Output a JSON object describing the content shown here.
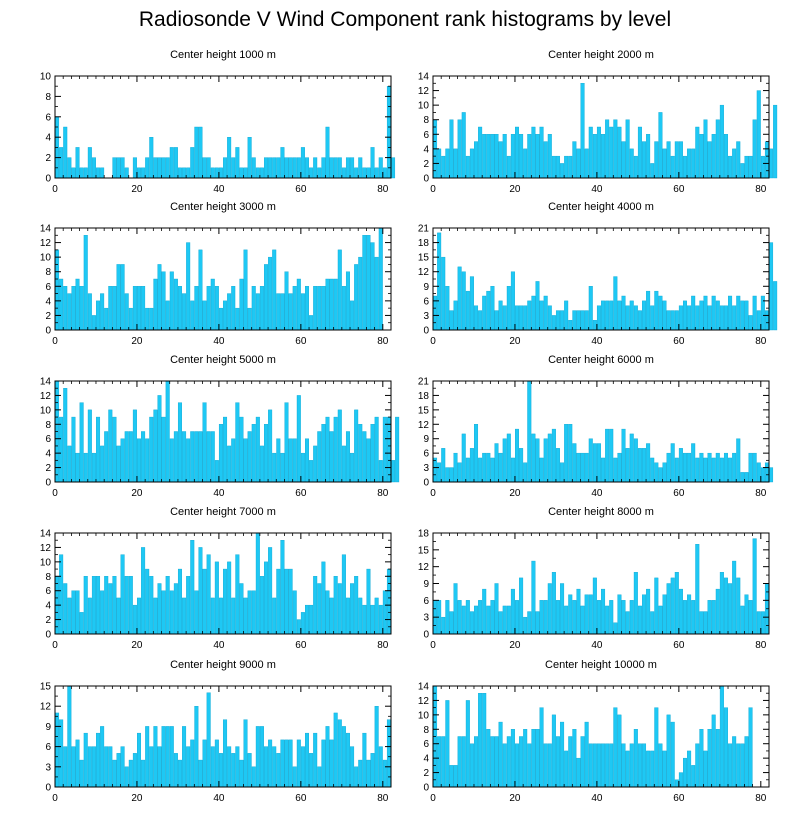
{
  "title": "Radiosonde V Wind Component rank histograms by level",
  "colors": {
    "bar": "#1ec8f4",
    "bar_stroke": "#0aa6d2",
    "axis": "#000000"
  },
  "chart_data": [
    {
      "type": "bar",
      "title": "Center height 1000 m",
      "xlim": [
        0,
        82
      ],
      "ylim": [
        0,
        10
      ],
      "xticks": [
        0,
        20,
        40,
        60,
        80
      ],
      "yticks": [
        0,
        2,
        4,
        6,
        8,
        10
      ],
      "values": [
        6,
        3,
        5,
        2,
        1,
        3,
        1,
        1,
        3,
        2,
        1,
        1,
        0,
        0,
        2,
        2,
        2,
        1,
        0,
        2,
        1,
        1,
        2,
        4,
        2,
        2,
        2,
        2,
        3,
        3,
        1,
        1,
        1,
        3,
        5,
        5,
        2,
        2,
        1,
        1,
        1,
        2,
        4,
        2,
        3,
        1,
        1,
        4,
        2,
        1,
        1,
        2,
        2,
        2,
        2,
        3,
        2,
        2,
        2,
        2,
        3,
        2,
        1,
        2,
        1,
        2,
        5,
        2,
        2,
        2,
        1,
        2,
        2,
        1,
        2,
        1,
        1,
        3,
        1,
        2,
        1,
        9,
        2
      ]
    },
    {
      "type": "bar",
      "title": "Center height 2000 m",
      "xlim": [
        0,
        82
      ],
      "ylim": [
        0,
        14
      ],
      "xticks": [
        0,
        20,
        40,
        60,
        80
      ],
      "yticks": [
        0,
        2,
        4,
        6,
        8,
        10,
        12,
        14
      ],
      "values": [
        8,
        4,
        3,
        4,
        8,
        4,
        8,
        9,
        3,
        4,
        5,
        7,
        6,
        6,
        6,
        6,
        5,
        6,
        3,
        6,
        7,
        6,
        4,
        6,
        7,
        6,
        7,
        5,
        6,
        3,
        3,
        2,
        3,
        3,
        5,
        4,
        13,
        4,
        7,
        6,
        7,
        6,
        8,
        7,
        8,
        7,
        5,
        8,
        4,
        3,
        7,
        5,
        6,
        2,
        5,
        9,
        4,
        5,
        3,
        5,
        5,
        3,
        4,
        4,
        7,
        6,
        8,
        5,
        6,
        8,
        10,
        6,
        3,
        4,
        5,
        2,
        3,
        3,
        8,
        12,
        3,
        5,
        4,
        10
      ]
    },
    {
      "type": "bar",
      "title": "Center height 3000 m",
      "xlim": [
        0,
        82
      ],
      "ylim": [
        0,
        14
      ],
      "xticks": [
        0,
        20,
        40,
        60,
        80
      ],
      "yticks": [
        0,
        2,
        4,
        6,
        8,
        10,
        12,
        14
      ],
      "values": [
        11,
        7,
        6,
        5,
        6,
        7,
        6,
        13,
        5,
        2,
        4,
        5,
        3,
        6,
        6,
        9,
        9,
        5,
        3,
        6,
        6,
        6,
        3,
        3,
        7,
        9,
        8,
        4,
        8,
        7,
        6,
        5,
        12,
        4,
        6,
        11,
        4,
        6,
        7,
        6,
        3,
        4,
        5,
        6,
        3,
        7,
        11,
        3,
        6,
        5,
        6,
        9,
        10,
        11,
        5,
        5,
        8,
        5,
        6,
        7,
        5,
        6,
        2,
        6,
        6,
        6,
        7,
        7,
        7,
        11,
        6,
        8,
        4,
        9,
        10,
        13,
        13,
        12,
        10,
        14
      ]
    },
    {
      "type": "bar",
      "title": "Center height 4000 m",
      "xlim": [
        0,
        82
      ],
      "ylim": [
        0,
        21
      ],
      "xticks": [
        0,
        20,
        40,
        60,
        80
      ],
      "yticks": [
        0,
        3,
        6,
        9,
        12,
        15,
        18,
        21
      ],
      "values": [
        7,
        20,
        15,
        9,
        4,
        6,
        13,
        12,
        8,
        11,
        5,
        4,
        7,
        8,
        9,
        4,
        6,
        5,
        9,
        12,
        5,
        5,
        5,
        6,
        7,
        10,
        6,
        7,
        5,
        3,
        4,
        4,
        6,
        2,
        4,
        4,
        4,
        4,
        9,
        2,
        5,
        6,
        6,
        6,
        11,
        6,
        7,
        5,
        6,
        5,
        4,
        6,
        8,
        5,
        8,
        7,
        6,
        4,
        4,
        4,
        5,
        6,
        5,
        7,
        5,
        6,
        7,
        5,
        7,
        6,
        5,
        5,
        7,
        5,
        7,
        6,
        6,
        3,
        7,
        4,
        7,
        4,
        18,
        10
      ]
    },
    {
      "type": "bar",
      "title": "Center height 5000 m",
      "xlim": [
        0,
        82
      ],
      "ylim": [
        0,
        14
      ],
      "xticks": [
        0,
        20,
        40,
        60,
        80
      ],
      "yticks": [
        0,
        2,
        4,
        6,
        8,
        10,
        12,
        14
      ],
      "values": [
        14,
        9,
        13,
        5,
        9,
        4,
        11,
        4,
        10,
        4,
        9,
        5,
        7,
        10,
        9,
        5,
        6,
        7,
        7,
        10,
        6,
        7,
        6,
        9,
        10,
        12,
        9,
        14,
        6,
        7,
        11,
        7,
        6,
        7,
        7,
        7,
        11,
        7,
        7,
        3,
        8,
        9,
        5,
        6,
        11,
        9,
        6,
        7,
        8,
        9,
        5,
        8,
        10,
        4,
        6,
        4,
        11,
        6,
        6,
        12,
        4,
        6,
        3,
        5,
        7,
        8,
        9,
        7,
        9,
        10,
        5,
        7,
        4,
        10,
        8,
        7,
        6,
        8,
        9,
        3,
        9,
        9,
        3,
        9
      ]
    },
    {
      "type": "bar",
      "title": "Center height 6000 m",
      "xlim": [
        0,
        82
      ],
      "ylim": [
        0,
        21
      ],
      "xticks": [
        0,
        20,
        40,
        60,
        80
      ],
      "yticks": [
        0,
        3,
        6,
        9,
        12,
        15,
        18,
        21
      ],
      "values": [
        5,
        4,
        7,
        3,
        3,
        6,
        4,
        10,
        5,
        7,
        12,
        5,
        6,
        6,
        5,
        8,
        6,
        9,
        10,
        5,
        11,
        7,
        4,
        21,
        10,
        9,
        5,
        9,
        10,
        11,
        7,
        4,
        12,
        12,
        8,
        6,
        6,
        6,
        9,
        8,
        8,
        5,
        11,
        11,
        5,
        6,
        11,
        7,
        10,
        9,
        7,
        7,
        8,
        5,
        4,
        3,
        4,
        6,
        8,
        5,
        7,
        6,
        6,
        8,
        5,
        6,
        5,
        6,
        5,
        6,
        5,
        6,
        5,
        6,
        9,
        2,
        2,
        6,
        6,
        4,
        3,
        4,
        3
      ]
    },
    {
      "type": "bar",
      "title": "Center height 7000 m",
      "xlim": [
        0,
        82
      ],
      "ylim": [
        0,
        14
      ],
      "xticks": [
        0,
        20,
        40,
        60,
        80
      ],
      "yticks": [
        0,
        2,
        4,
        6,
        8,
        10,
        12,
        14
      ],
      "values": [
        8,
        11,
        7,
        5,
        6,
        6,
        3,
        8,
        5,
        8,
        8,
        6,
        8,
        7,
        8,
        5,
        11,
        8,
        8,
        4,
        5,
        12,
        9,
        8,
        5,
        7,
        6,
        8,
        6,
        7,
        9,
        5,
        8,
        13,
        6,
        12,
        9,
        11,
        5,
        10,
        5,
        9,
        10,
        5,
        11,
        7,
        5,
        6,
        6,
        14,
        8,
        10,
        12,
        5,
        9,
        13,
        9,
        9,
        6,
        2,
        3,
        4,
        4,
        8,
        7,
        10,
        6,
        5,
        8,
        7,
        11,
        5,
        7,
        8,
        5,
        4,
        9,
        4,
        5,
        4,
        6,
        9
      ]
    },
    {
      "type": "bar",
      "title": "Center height 8000 m",
      "xlim": [
        0,
        82
      ],
      "ylim": [
        0,
        18
      ],
      "xticks": [
        0,
        20,
        40,
        60,
        80
      ],
      "yticks": [
        0,
        3,
        6,
        9,
        12,
        15,
        18
      ],
      "values": [
        6,
        6,
        3,
        6,
        4,
        9,
        6,
        5,
        6,
        4,
        5,
        6,
        8,
        5,
        6,
        9,
        4,
        5,
        5,
        8,
        6,
        10,
        3,
        4,
        13,
        4,
        6,
        6,
        9,
        11,
        6,
        9,
        5,
        7,
        6,
        8,
        5,
        7,
        7,
        10,
        6,
        8,
        5,
        6,
        2,
        7,
        6,
        4,
        6,
        11,
        5,
        7,
        8,
        4,
        10,
        5,
        7,
        9,
        10,
        11,
        8,
        6,
        7,
        6,
        16,
        4,
        4,
        6,
        6,
        8,
        11,
        10,
        9,
        13,
        10,
        5,
        7,
        6,
        17,
        4,
        4,
        9
      ]
    },
    {
      "type": "bar",
      "title": "Center height 9000 m",
      "xlim": [
        0,
        82
      ],
      "ylim": [
        0,
        15
      ],
      "xticks": [
        0,
        20,
        40,
        60,
        80
      ],
      "yticks": [
        0,
        3,
        6,
        9,
        12,
        15
      ],
      "values": [
        11,
        10,
        6,
        15,
        6,
        7,
        4,
        8,
        6,
        6,
        8,
        9,
        6,
        6,
        4,
        5,
        6,
        3,
        4,
        5,
        8,
        4,
        9,
        6,
        9,
        6,
        9,
        9,
        9,
        5,
        4,
        9,
        6,
        7,
        12,
        4,
        7,
        14,
        6,
        7,
        5,
        10,
        6,
        5,
        6,
        4,
        10,
        5,
        3,
        9,
        9,
        6,
        7,
        6,
        5,
        7,
        7,
        7,
        3,
        7,
        6,
        8,
        5,
        8,
        3,
        7,
        9,
        7,
        11,
        10,
        9,
        8,
        6,
        3,
        4,
        8,
        4,
        5,
        12,
        6,
        4,
        10
      ]
    },
    {
      "type": "bar",
      "title": "Center height 10000 m",
      "xlim": [
        0,
        82
      ],
      "ylim": [
        0,
        14
      ],
      "xticks": [
        0,
        20,
        40,
        60,
        80
      ],
      "yticks": [
        0,
        2,
        4,
        6,
        8,
        10,
        12,
        14
      ],
      "values": [
        14,
        7,
        7,
        12,
        3,
        3,
        7,
        7,
        12,
        6,
        7,
        13,
        13,
        8,
        7,
        7,
        9,
        6,
        7,
        8,
        6,
        7,
        8,
        6,
        8,
        8,
        11,
        6,
        6,
        10,
        7,
        9,
        5,
        7,
        8,
        4,
        7,
        9,
        6,
        6,
        6,
        6,
        6,
        6,
        11,
        10,
        6,
        5,
        6,
        8,
        6,
        6,
        5,
        5,
        11,
        6,
        5,
        10,
        9,
        1,
        2,
        4,
        5,
        3,
        6,
        8,
        5,
        8,
        10,
        8,
        14,
        11,
        6,
        7,
        6,
        6,
        7,
        11
      ]
    }
  ]
}
